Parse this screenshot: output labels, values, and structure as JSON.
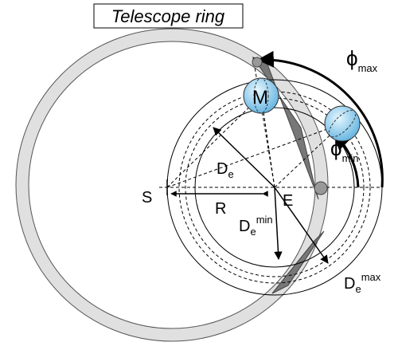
{
  "title": "Telescope ring",
  "labels": {
    "phi_max": {
      "symbol": "ϕ",
      "sub": "max"
    },
    "phi_min": {
      "symbol": "ϕ",
      "sub": "min"
    },
    "moon": "M",
    "earth": "E",
    "sun": "S",
    "radius": "R",
    "de": {
      "symbol": "D",
      "sub": "e"
    },
    "de_min": {
      "symbol": "D",
      "sub": "e",
      "sup": "min"
    },
    "de_max": {
      "symbol": "D",
      "sub": "e",
      "sup": "max"
    }
  }
}
